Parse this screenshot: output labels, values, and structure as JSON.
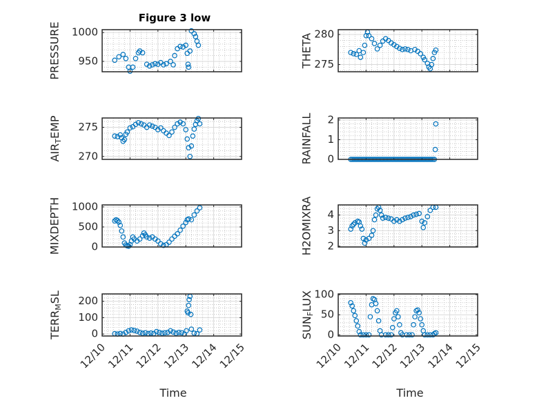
{
  "figure": {
    "title": "Figure 3 low",
    "xlabel_left": "Time",
    "xlabel_right": "Time",
    "colors": {
      "marker": "#0072BD",
      "axes": "#262626",
      "grid": "#b8b8b8",
      "background": "#ffffff"
    }
  },
  "chart_data": [
    {
      "type": "scatter",
      "ylabel": "PRESSURE",
      "ylim": [
        932,
        1005
      ],
      "yticks": [
        950,
        1000
      ],
      "xticks": [
        "12/10",
        "12/11",
        "12/12",
        "12/13",
        "12/14",
        "12/15"
      ],
      "xlim": [
        0,
        5
      ],
      "grid": true,
      "points": [
        [
          0.45,
          952
        ],
        [
          0.6,
          958
        ],
        [
          0.75,
          962
        ],
        [
          0.85,
          955
        ],
        [
          0.95,
          940
        ],
        [
          1.0,
          933
        ],
        [
          1.1,
          940
        ],
        [
          1.2,
          955
        ],
        [
          1.3,
          965
        ],
        [
          1.35,
          968
        ],
        [
          1.45,
          965
        ],
        [
          1.6,
          945
        ],
        [
          1.7,
          942
        ],
        [
          1.8,
          944
        ],
        [
          1.9,
          946
        ],
        [
          2.0,
          945
        ],
        [
          2.1,
          948
        ],
        [
          2.2,
          944
        ],
        [
          2.3,
          946
        ],
        [
          2.45,
          950
        ],
        [
          2.55,
          944
        ],
        [
          2.6,
          960
        ],
        [
          2.7,
          972
        ],
        [
          2.8,
          976
        ],
        [
          2.9,
          975
        ],
        [
          3.0,
          978
        ],
        [
          3.05,
          964
        ],
        [
          3.08,
          945
        ],
        [
          3.1,
          940
        ],
        [
          3.15,
          968
        ],
        [
          3.2,
          1003
        ],
        [
          3.3,
          998
        ],
        [
          3.35,
          993
        ],
        [
          3.4,
          985
        ],
        [
          3.45,
          978
        ]
      ]
    },
    {
      "type": "scatter",
      "ylabel": "THETA",
      "ylim": [
        273.8,
        280.8
      ],
      "yticks": [
        275,
        280
      ],
      "xticks": [
        "12/10",
        "12/11",
        "12/12",
        "12/13",
        "12/14",
        "12/15"
      ],
      "xlim": [
        0,
        5
      ],
      "grid": true,
      "points": [
        [
          0.45,
          277
        ],
        [
          0.55,
          276.8
        ],
        [
          0.65,
          276.7
        ],
        [
          0.75,
          277.3
        ],
        [
          0.8,
          276.2
        ],
        [
          0.9,
          277
        ],
        [
          0.95,
          278.2
        ],
        [
          1.0,
          279.8
        ],
        [
          1.05,
          280.4
        ],
        [
          1.1,
          279.8
        ],
        [
          1.2,
          279.3
        ],
        [
          1.3,
          278.5
        ],
        [
          1.4,
          277.6
        ],
        [
          1.5,
          278.2
        ],
        [
          1.6,
          278.9
        ],
        [
          1.7,
          279.3
        ],
        [
          1.8,
          279.0
        ],
        [
          1.9,
          278.6
        ],
        [
          2.0,
          278.3
        ],
        [
          2.1,
          278.0
        ],
        [
          2.2,
          277.7
        ],
        [
          2.3,
          277.5
        ],
        [
          2.4,
          277.6
        ],
        [
          2.5,
          277.5
        ],
        [
          2.6,
          277.3
        ],
        [
          2.75,
          277.5
        ],
        [
          2.85,
          277.2
        ],
        [
          2.95,
          276.8
        ],
        [
          3.05,
          276.2
        ],
        [
          3.1,
          275.8
        ],
        [
          3.2,
          275.2
        ],
        [
          3.25,
          274.6
        ],
        [
          3.3,
          274.3
        ],
        [
          3.35,
          275
        ],
        [
          3.4,
          276
        ],
        [
          3.45,
          277
        ],
        [
          3.5,
          277.4
        ]
      ]
    },
    {
      "type": "scatter",
      "ylabel": "AIR_TEMP",
      "ylim": [
        269.5,
        276.6
      ],
      "yticks": [
        270,
        275
      ],
      "xticks": [
        "12/10",
        "12/11",
        "12/12",
        "12/13",
        "12/14",
        "12/15"
      ],
      "xlim": [
        0,
        5
      ],
      "grid": true,
      "points": [
        [
          0.45,
          273.5
        ],
        [
          0.55,
          273.4
        ],
        [
          0.65,
          273.7
        ],
        [
          0.7,
          273.2
        ],
        [
          0.75,
          272.6
        ],
        [
          0.8,
          272.9
        ],
        [
          0.85,
          273.8
        ],
        [
          0.9,
          274.2
        ],
        [
          1.0,
          274.9
        ],
        [
          1.1,
          275.1
        ],
        [
          1.2,
          275.5
        ],
        [
          1.3,
          275.8
        ],
        [
          1.4,
          275.6
        ],
        [
          1.5,
          275.4
        ],
        [
          1.6,
          275.0
        ],
        [
          1.7,
          275.4
        ],
        [
          1.8,
          275.2
        ],
        [
          1.9,
          275.0
        ],
        [
          2.0,
          274.6
        ],
        [
          2.1,
          274.9
        ],
        [
          2.2,
          274.4
        ],
        [
          2.3,
          274.0
        ],
        [
          2.4,
          273.6
        ],
        [
          2.5,
          274.2
        ],
        [
          2.6,
          275.0
        ],
        [
          2.7,
          275.6
        ],
        [
          2.8,
          275.9
        ],
        [
          2.9,
          275.6
        ],
        [
          3.0,
          274.6
        ],
        [
          3.05,
          273.0
        ],
        [
          3.1,
          271.5
        ],
        [
          3.15,
          270.0
        ],
        [
          3.2,
          271.8
        ],
        [
          3.25,
          273.5
        ],
        [
          3.3,
          274.7
        ],
        [
          3.35,
          275.5
        ],
        [
          3.4,
          276.1
        ],
        [
          3.45,
          276.5
        ],
        [
          3.5,
          275.6
        ]
      ]
    },
    {
      "type": "scatter",
      "ylabel": "RAINFALL",
      "ylim": [
        0,
        2.1
      ],
      "yticks": [
        0,
        1,
        2
      ],
      "xticks": [
        "12/10",
        "12/11",
        "12/12",
        "12/13",
        "12/14",
        "12/15"
      ],
      "xlim": [
        0,
        5
      ],
      "grid": true,
      "zero_range": [
        0.45,
        3.45
      ],
      "points": [
        [
          3.48,
          0.5
        ],
        [
          3.5,
          1.8
        ]
      ]
    },
    {
      "type": "scatter",
      "ylabel": "MIXDEPTH",
      "ylim": [
        0,
        1050
      ],
      "yticks": [
        0,
        500,
        1000
      ],
      "xticks": [
        "12/10",
        "12/11",
        "12/12",
        "12/13",
        "12/14",
        "12/15"
      ],
      "xlim": [
        0,
        5
      ],
      "grid": true,
      "points": [
        [
          0.45,
          650
        ],
        [
          0.5,
          680
        ],
        [
          0.55,
          660
        ],
        [
          0.6,
          620
        ],
        [
          0.65,
          540
        ],
        [
          0.7,
          400
        ],
        [
          0.75,
          250
        ],
        [
          0.8,
          100
        ],
        [
          0.85,
          50
        ],
        [
          0.9,
          30
        ],
        [
          0.95,
          20
        ],
        [
          1.0,
          60
        ],
        [
          1.05,
          150
        ],
        [
          1.1,
          250
        ],
        [
          1.15,
          200
        ],
        [
          1.25,
          150
        ],
        [
          1.35,
          200
        ],
        [
          1.45,
          280
        ],
        [
          1.5,
          350
        ],
        [
          1.55,
          300
        ],
        [
          1.6,
          250
        ],
        [
          1.7,
          220
        ],
        [
          1.8,
          250
        ],
        [
          1.9,
          200
        ],
        [
          2.0,
          150
        ],
        [
          2.1,
          80
        ],
        [
          2.2,
          40
        ],
        [
          2.3,
          60
        ],
        [
          2.4,
          120
        ],
        [
          2.5,
          200
        ],
        [
          2.6,
          270
        ],
        [
          2.7,
          330
        ],
        [
          2.8,
          420
        ],
        [
          2.9,
          520
        ],
        [
          3.0,
          610
        ],
        [
          3.05,
          680
        ],
        [
          3.1,
          700
        ],
        [
          3.2,
          680
        ],
        [
          3.3,
          800
        ],
        [
          3.4,
          900
        ],
        [
          3.5,
          980
        ]
      ]
    },
    {
      "type": "scatter",
      "ylabel": "H2OMIXRA",
      "ylim": [
        1.95,
        4.65
      ],
      "yticks": [
        2,
        3,
        4
      ],
      "xticks": [
        "12/10",
        "12/11",
        "12/12",
        "12/13",
        "12/14",
        "12/15"
      ],
      "xlim": [
        0,
        5
      ],
      "grid": true,
      "points": [
        [
          0.45,
          3.1
        ],
        [
          0.5,
          3.3
        ],
        [
          0.55,
          3.4
        ],
        [
          0.6,
          3.5
        ],
        [
          0.7,
          3.6
        ],
        [
          0.75,
          3.55
        ],
        [
          0.8,
          3.3
        ],
        [
          0.85,
          3.1
        ],
        [
          0.9,
          2.5
        ],
        [
          0.95,
          2.2
        ],
        [
          1.0,
          2.4
        ],
        [
          1.1,
          2.5
        ],
        [
          1.2,
          2.7
        ],
        [
          1.25,
          3.0
        ],
        [
          1.3,
          3.7
        ],
        [
          1.35,
          4.0
        ],
        [
          1.4,
          4.4
        ],
        [
          1.45,
          4.5
        ],
        [
          1.5,
          4.3
        ],
        [
          1.55,
          4.0
        ],
        [
          1.6,
          3.8
        ],
        [
          1.7,
          3.85
        ],
        [
          1.8,
          3.8
        ],
        [
          1.9,
          3.75
        ],
        [
          2.0,
          3.6
        ],
        [
          2.1,
          3.7
        ],
        [
          2.2,
          3.6
        ],
        [
          2.3,
          3.7
        ],
        [
          2.4,
          3.8
        ],
        [
          2.5,
          3.85
        ],
        [
          2.6,
          3.9
        ],
        [
          2.7,
          4.0
        ],
        [
          2.8,
          4.05
        ],
        [
          2.9,
          4.1
        ],
        [
          3.0,
          3.6
        ],
        [
          3.05,
          3.2
        ],
        [
          3.1,
          3.5
        ],
        [
          3.2,
          3.9
        ],
        [
          3.3,
          4.3
        ],
        [
          3.4,
          4.5
        ],
        [
          3.5,
          4.5
        ]
      ]
    },
    {
      "type": "scatter",
      "ylabel": "TERR_MSL",
      "ylim": [
        -12,
        245
      ],
      "yticks": [
        0,
        100,
        200
      ],
      "xticks": [
        "12/10",
        "12/11",
        "12/12",
        "12/13",
        "12/14",
        "12/15"
      ],
      "xlim": [
        0,
        5
      ],
      "grid": true,
      "points": [
        [
          0.45,
          2
        ],
        [
          0.55,
          0
        ],
        [
          0.65,
          3
        ],
        [
          0.75,
          0
        ],
        [
          0.85,
          10
        ],
        [
          0.95,
          20
        ],
        [
          1.05,
          25
        ],
        [
          1.15,
          22
        ],
        [
          1.25,
          18
        ],
        [
          1.35,
          10
        ],
        [
          1.45,
          5
        ],
        [
          1.55,
          8
        ],
        [
          1.65,
          3
        ],
        [
          1.75,
          6
        ],
        [
          1.85,
          3
        ],
        [
          1.95,
          15
        ],
        [
          2.05,
          10
        ],
        [
          2.15,
          5
        ],
        [
          2.25,
          8
        ],
        [
          2.35,
          10
        ],
        [
          2.45,
          20
        ],
        [
          2.55,
          12
        ],
        [
          2.65,
          5
        ],
        [
          2.75,
          10
        ],
        [
          2.85,
          8
        ],
        [
          2.95,
          0
        ],
        [
          3.02,
          20
        ],
        [
          3.05,
          140
        ],
        [
          3.08,
          130
        ],
        [
          3.1,
          175
        ],
        [
          3.12,
          210
        ],
        [
          3.15,
          230
        ],
        [
          3.18,
          120
        ],
        [
          3.2,
          30
        ],
        [
          3.3,
          5
        ],
        [
          3.4,
          2
        ],
        [
          3.5,
          25
        ]
      ]
    },
    {
      "type": "scatter",
      "ylabel": "SUN_FLUX",
      "ylim": [
        -3,
        102
      ],
      "yticks": [
        0,
        50,
        100
      ],
      "xticks": [
        "12/10",
        "12/11",
        "12/12",
        "12/13",
        "12/14",
        "12/15"
      ],
      "xlim": [
        0,
        5
      ],
      "grid": true,
      "points": [
        [
          0.45,
          80
        ],
        [
          0.5,
          72
        ],
        [
          0.55,
          60
        ],
        [
          0.6,
          48
        ],
        [
          0.65,
          35
        ],
        [
          0.7,
          22
        ],
        [
          0.75,
          8
        ],
        [
          0.8,
          0
        ],
        [
          0.9,
          0
        ],
        [
          1.0,
          0
        ],
        [
          1.1,
          0
        ],
        [
          1.15,
          45
        ],
        [
          1.2,
          75
        ],
        [
          1.25,
          90
        ],
        [
          1.3,
          88
        ],
        [
          1.35,
          78
        ],
        [
          1.4,
          60
        ],
        [
          1.45,
          35
        ],
        [
          1.5,
          10
        ],
        [
          1.55,
          0
        ],
        [
          1.7,
          0
        ],
        [
          1.8,
          0
        ],
        [
          1.9,
          0
        ],
        [
          1.95,
          18
        ],
        [
          2.0,
          40
        ],
        [
          2.05,
          55
        ],
        [
          2.1,
          60
        ],
        [
          2.15,
          45
        ],
        [
          2.2,
          25
        ],
        [
          2.25,
          5
        ],
        [
          2.3,
          0
        ],
        [
          2.45,
          0
        ],
        [
          2.55,
          0
        ],
        [
          2.65,
          0
        ],
        [
          2.7,
          25
        ],
        [
          2.75,
          45
        ],
        [
          2.8,
          60
        ],
        [
          2.85,
          62
        ],
        [
          2.9,
          55
        ],
        [
          2.95,
          40
        ],
        [
          3.0,
          25
        ],
        [
          3.05,
          10
        ],
        [
          3.1,
          0
        ],
        [
          3.2,
          0
        ],
        [
          3.3,
          0
        ],
        [
          3.4,
          0
        ],
        [
          3.45,
          3
        ],
        [
          3.5,
          5
        ]
      ]
    }
  ]
}
